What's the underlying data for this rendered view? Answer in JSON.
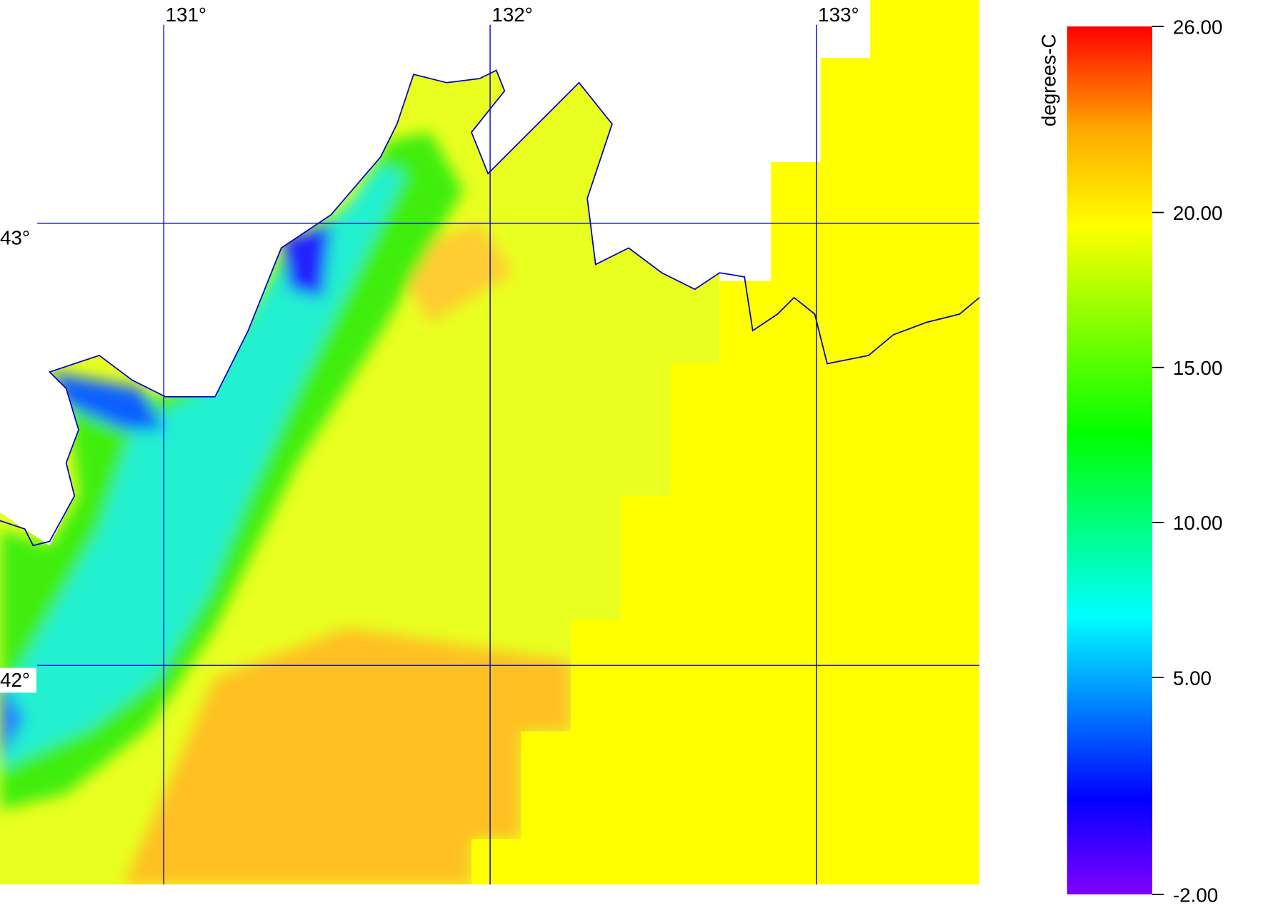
{
  "map": {
    "lon_ticks": [
      {
        "value": 131,
        "label": "131°"
      },
      {
        "value": 132,
        "label": "132°"
      },
      {
        "value": 133,
        "label": "133°"
      }
    ],
    "lat_ticks": [
      {
        "value": 43,
        "label": "43°"
      },
      {
        "value": 42,
        "label": "42°"
      }
    ]
  },
  "colorbar": {
    "label": "degrees-C",
    "range": [
      -2,
      26
    ],
    "ticks": [
      {
        "value": 26,
        "label": "26.00"
      },
      {
        "value": 20,
        "label": "20.00"
      },
      {
        "value": 15,
        "label": "15.00"
      },
      {
        "value": 10,
        "label": "10.00"
      },
      {
        "value": 5,
        "label": "5.00"
      },
      {
        "value": -2,
        "label": "-2.00"
      }
    ]
  }
}
